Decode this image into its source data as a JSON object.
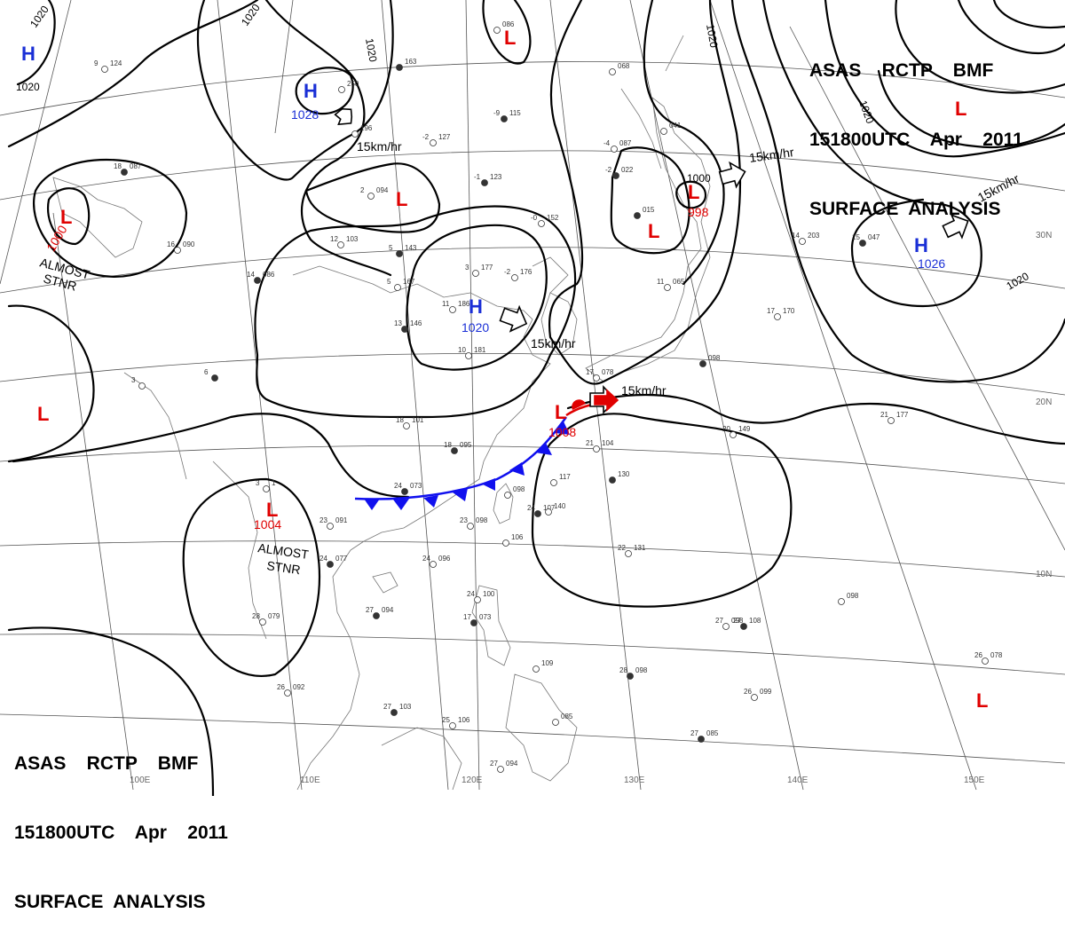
{
  "header": {
    "agency_line": "ASAS    RCTP    BMF",
    "time_line": "151800UTC    Apr    2011",
    "product_line": "SURFACE  ANALYSIS"
  },
  "footer": {
    "agency_line": "ASAS    RCTP    BMF",
    "time_line": "151800UTC    Apr    2011",
    "product_line": "SURFACE  ANALYSIS"
  },
  "colors": {
    "high": "#1a2fd6",
    "low": "#e00000",
    "cold_front": "#1010ee",
    "warm_front": "#e00000",
    "isobar": "#000000",
    "grid": "#555555",
    "coast": "#777777"
  },
  "longitude_labels": [
    "100E",
    "110E",
    "120E",
    "130E",
    "140E",
    "150E"
  ],
  "latitude_labels": [
    "10N",
    "20N",
    "30N"
  ],
  "pressure_centers": [
    {
      "kind": "H",
      "value": "",
      "id": "high-nw-corner"
    },
    {
      "kind": "H",
      "value": "1028",
      "id": "high-mongolia"
    },
    {
      "kind": "H",
      "value": "1020",
      "id": "high-china"
    },
    {
      "kind": "H",
      "value": "1026",
      "id": "high-pacific"
    },
    {
      "kind": "L",
      "value": "1000",
      "id": "low-west"
    },
    {
      "kind": "L",
      "value": "998",
      "id": "low-japan-sea"
    },
    {
      "kind": "L",
      "value": "1008",
      "id": "low-east-china-sea"
    },
    {
      "kind": "L",
      "value": "1004",
      "id": "low-indochina"
    },
    {
      "kind": "L",
      "value": "",
      "id": "low-north"
    },
    {
      "kind": "L",
      "value": "",
      "id": "low-north-china"
    },
    {
      "kind": "L",
      "value": "",
      "id": "low-korea"
    },
    {
      "kind": "L",
      "value": "",
      "id": "low-northeast"
    },
    {
      "kind": "L",
      "value": "",
      "id": "low-far-west"
    },
    {
      "kind": "L",
      "value": "",
      "id": "low-southeast"
    }
  ],
  "isobar_labels": [
    "1020",
    "1020",
    "1020",
    "1020",
    "1020",
    "1020",
    "1020",
    "1000"
  ],
  "movement_labels": [
    {
      "text": "15km/hr",
      "id": "move-mongolia-high"
    },
    {
      "text": "15km/hr",
      "id": "move-china-high"
    },
    {
      "text": "15km/hr",
      "id": "move-ecs-low"
    },
    {
      "text": "15km/hr",
      "id": "move-japan-low"
    },
    {
      "text": "15km/hr",
      "id": "move-pacific-high"
    }
  ],
  "annotations": [
    {
      "text": "ALMOST",
      "id": "west-low-almost"
    },
    {
      "text": "STNR",
      "id": "west-low-stnr"
    },
    {
      "text": "ALMOST",
      "id": "indochina-low-almost"
    },
    {
      "text": "STNR",
      "id": "indochina-low-stnr"
    }
  ],
  "station_reports": [
    {
      "temp": "18",
      "pressure": "087"
    },
    {
      "temp": "9",
      "pressure": "124"
    },
    {
      "temp": "",
      "pressure": "250"
    },
    {
      "temp": "",
      "pressure": "163"
    },
    {
      "temp": "",
      "pressure": "196"
    },
    {
      "temp": "",
      "pressure": "086"
    },
    {
      "temp": "-9",
      "pressure": "115"
    },
    {
      "temp": "-2",
      "pressure": "127"
    },
    {
      "temp": "2",
      "pressure": "094"
    },
    {
      "temp": "-1",
      "pressure": "123"
    },
    {
      "temp": "-0",
      "pressure": "152"
    },
    {
      "temp": "12",
      "pressure": "103"
    },
    {
      "temp": "5",
      "pressure": "143"
    },
    {
      "temp": "3",
      "pressure": "177"
    },
    {
      "temp": "-2",
      "pressure": "176"
    },
    {
      "temp": "14",
      "pressure": "086"
    },
    {
      "temp": "5",
      "pressure": "167"
    },
    {
      "temp": "11",
      "pressure": "186"
    },
    {
      "temp": "13",
      "pressure": "146"
    },
    {
      "temp": "10",
      "pressure": "181"
    },
    {
      "temp": "-4",
      "pressure": "087"
    },
    {
      "temp": "-2",
      "pressure": "022"
    },
    {
      "temp": "",
      "pressure": "041"
    },
    {
      "temp": "",
      "pressure": "068"
    },
    {
      "temp": "",
      "pressure": "015"
    },
    {
      "temp": "11",
      "pressure": "065"
    },
    {
      "temp": "14",
      "pressure": "203"
    },
    {
      "temp": "15",
      "pressure": "047"
    },
    {
      "temp": "17",
      "pressure": "170"
    },
    {
      "temp": "18",
      "pressure": "101"
    },
    {
      "temp": "18",
      "pressure": "095"
    },
    {
      "temp": "21",
      "pressure": "104"
    },
    {
      "temp": "17",
      "pressure": "078"
    },
    {
      "temp": "",
      "pressure": "098"
    },
    {
      "temp": "20",
      "pressure": "149"
    },
    {
      "temp": "21",
      "pressure": "177"
    },
    {
      "temp": "24",
      "pressure": "073"
    },
    {
      "temp": "",
      "pressure": "098"
    },
    {
      "temp": "",
      "pressure": "117"
    },
    {
      "temp": "",
      "pressure": "130"
    },
    {
      "temp": "23",
      "pressure": "091"
    },
    {
      "temp": "23",
      "pressure": "098"
    },
    {
      "temp": "24",
      "pressure": "107"
    },
    {
      "temp": "",
      "pressure": "140"
    },
    {
      "temp": "",
      "pressure": "106"
    },
    {
      "temp": "24",
      "pressure": "077"
    },
    {
      "temp": "24",
      "pressure": "096"
    },
    {
      "temp": "22",
      "pressure": "131"
    },
    {
      "temp": "27",
      "pressure": "094"
    },
    {
      "temp": "28",
      "pressure": "079"
    },
    {
      "temp": "24",
      "pressure": "100"
    },
    {
      "temp": "17",
      "pressure": "073"
    },
    {
      "temp": "",
      "pressure": "098"
    },
    {
      "temp": "27",
      "pressure": "098"
    },
    {
      "temp": "27",
      "pressure": "108"
    },
    {
      "temp": "26",
      "pressure": "092"
    },
    {
      "temp": "",
      "pressure": "109"
    },
    {
      "temp": "28",
      "pressure": "098"
    },
    {
      "temp": "26",
      "pressure": "099"
    },
    {
      "temp": "26",
      "pressure": "078"
    },
    {
      "temp": "27",
      "pressure": "103"
    },
    {
      "temp": "25",
      "pressure": "106"
    },
    {
      "temp": "",
      "pressure": "085"
    },
    {
      "temp": "27",
      "pressure": "085"
    },
    {
      "temp": "27",
      "pressure": "094"
    },
    {
      "temp": "16",
      "pressure": "090"
    },
    {
      "temp": "6",
      "pressure": ""
    },
    {
      "temp": "3",
      "pressure": ""
    },
    {
      "temp": "3",
      "pressure": "1"
    }
  ]
}
